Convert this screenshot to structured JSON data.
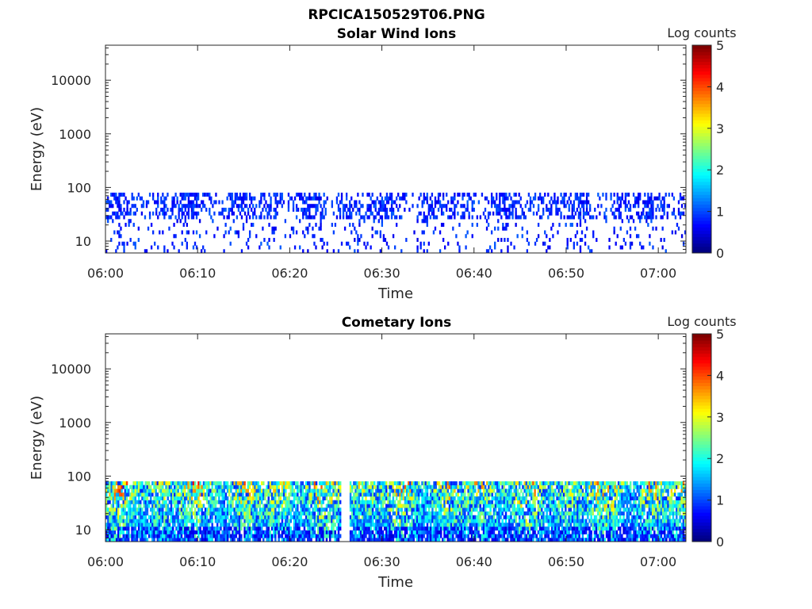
{
  "figure": {
    "title": "RPCICA150529T06.PNG"
  },
  "chart_data": [
    {
      "type": "heatmap",
      "title": "Solar Wind Ions",
      "xlabel": "Time",
      "ylabel": "Energy (eV)",
      "x_ticks": [
        "06:00",
        "06:10",
        "06:20",
        "06:30",
        "06:40",
        "06:50",
        "07:00"
      ],
      "x_range": [
        "06:00",
        "07:03"
      ],
      "y_ticks": [
        "10",
        "100",
        "1000",
        "10000"
      ],
      "y_scale": "log",
      "y_range": [
        6,
        45000
      ],
      "colorbar": {
        "label": "Log counts",
        "ticks": [
          "0",
          "1",
          "2",
          "3",
          "4",
          "5"
        ],
        "range": [
          0,
          5
        ],
        "colormap": "jet"
      },
      "data_energy_range": [
        6,
        80
      ],
      "level": "sparse",
      "data_gaps": [],
      "grid": false
    },
    {
      "type": "heatmap",
      "title": "Cometary Ions",
      "xlabel": "Time",
      "ylabel": "Energy (eV)",
      "x_ticks": [
        "06:00",
        "06:10",
        "06:20",
        "06:30",
        "06:40",
        "06:50",
        "07:00"
      ],
      "x_range": [
        "06:00",
        "07:03"
      ],
      "y_ticks": [
        "10",
        "100",
        "1000",
        "10000"
      ],
      "y_scale": "log",
      "y_range": [
        6,
        45000
      ],
      "colorbar": {
        "label": "Log counts",
        "ticks": [
          "0",
          "1",
          "2",
          "3",
          "4",
          "5"
        ],
        "range": [
          0,
          5
        ],
        "colormap": "jet"
      },
      "data_energy_range": [
        6,
        80
      ],
      "level": "dense",
      "data_gaps": [
        [
          "06:25:40",
          "06:26:20"
        ]
      ],
      "grid": false
    }
  ]
}
